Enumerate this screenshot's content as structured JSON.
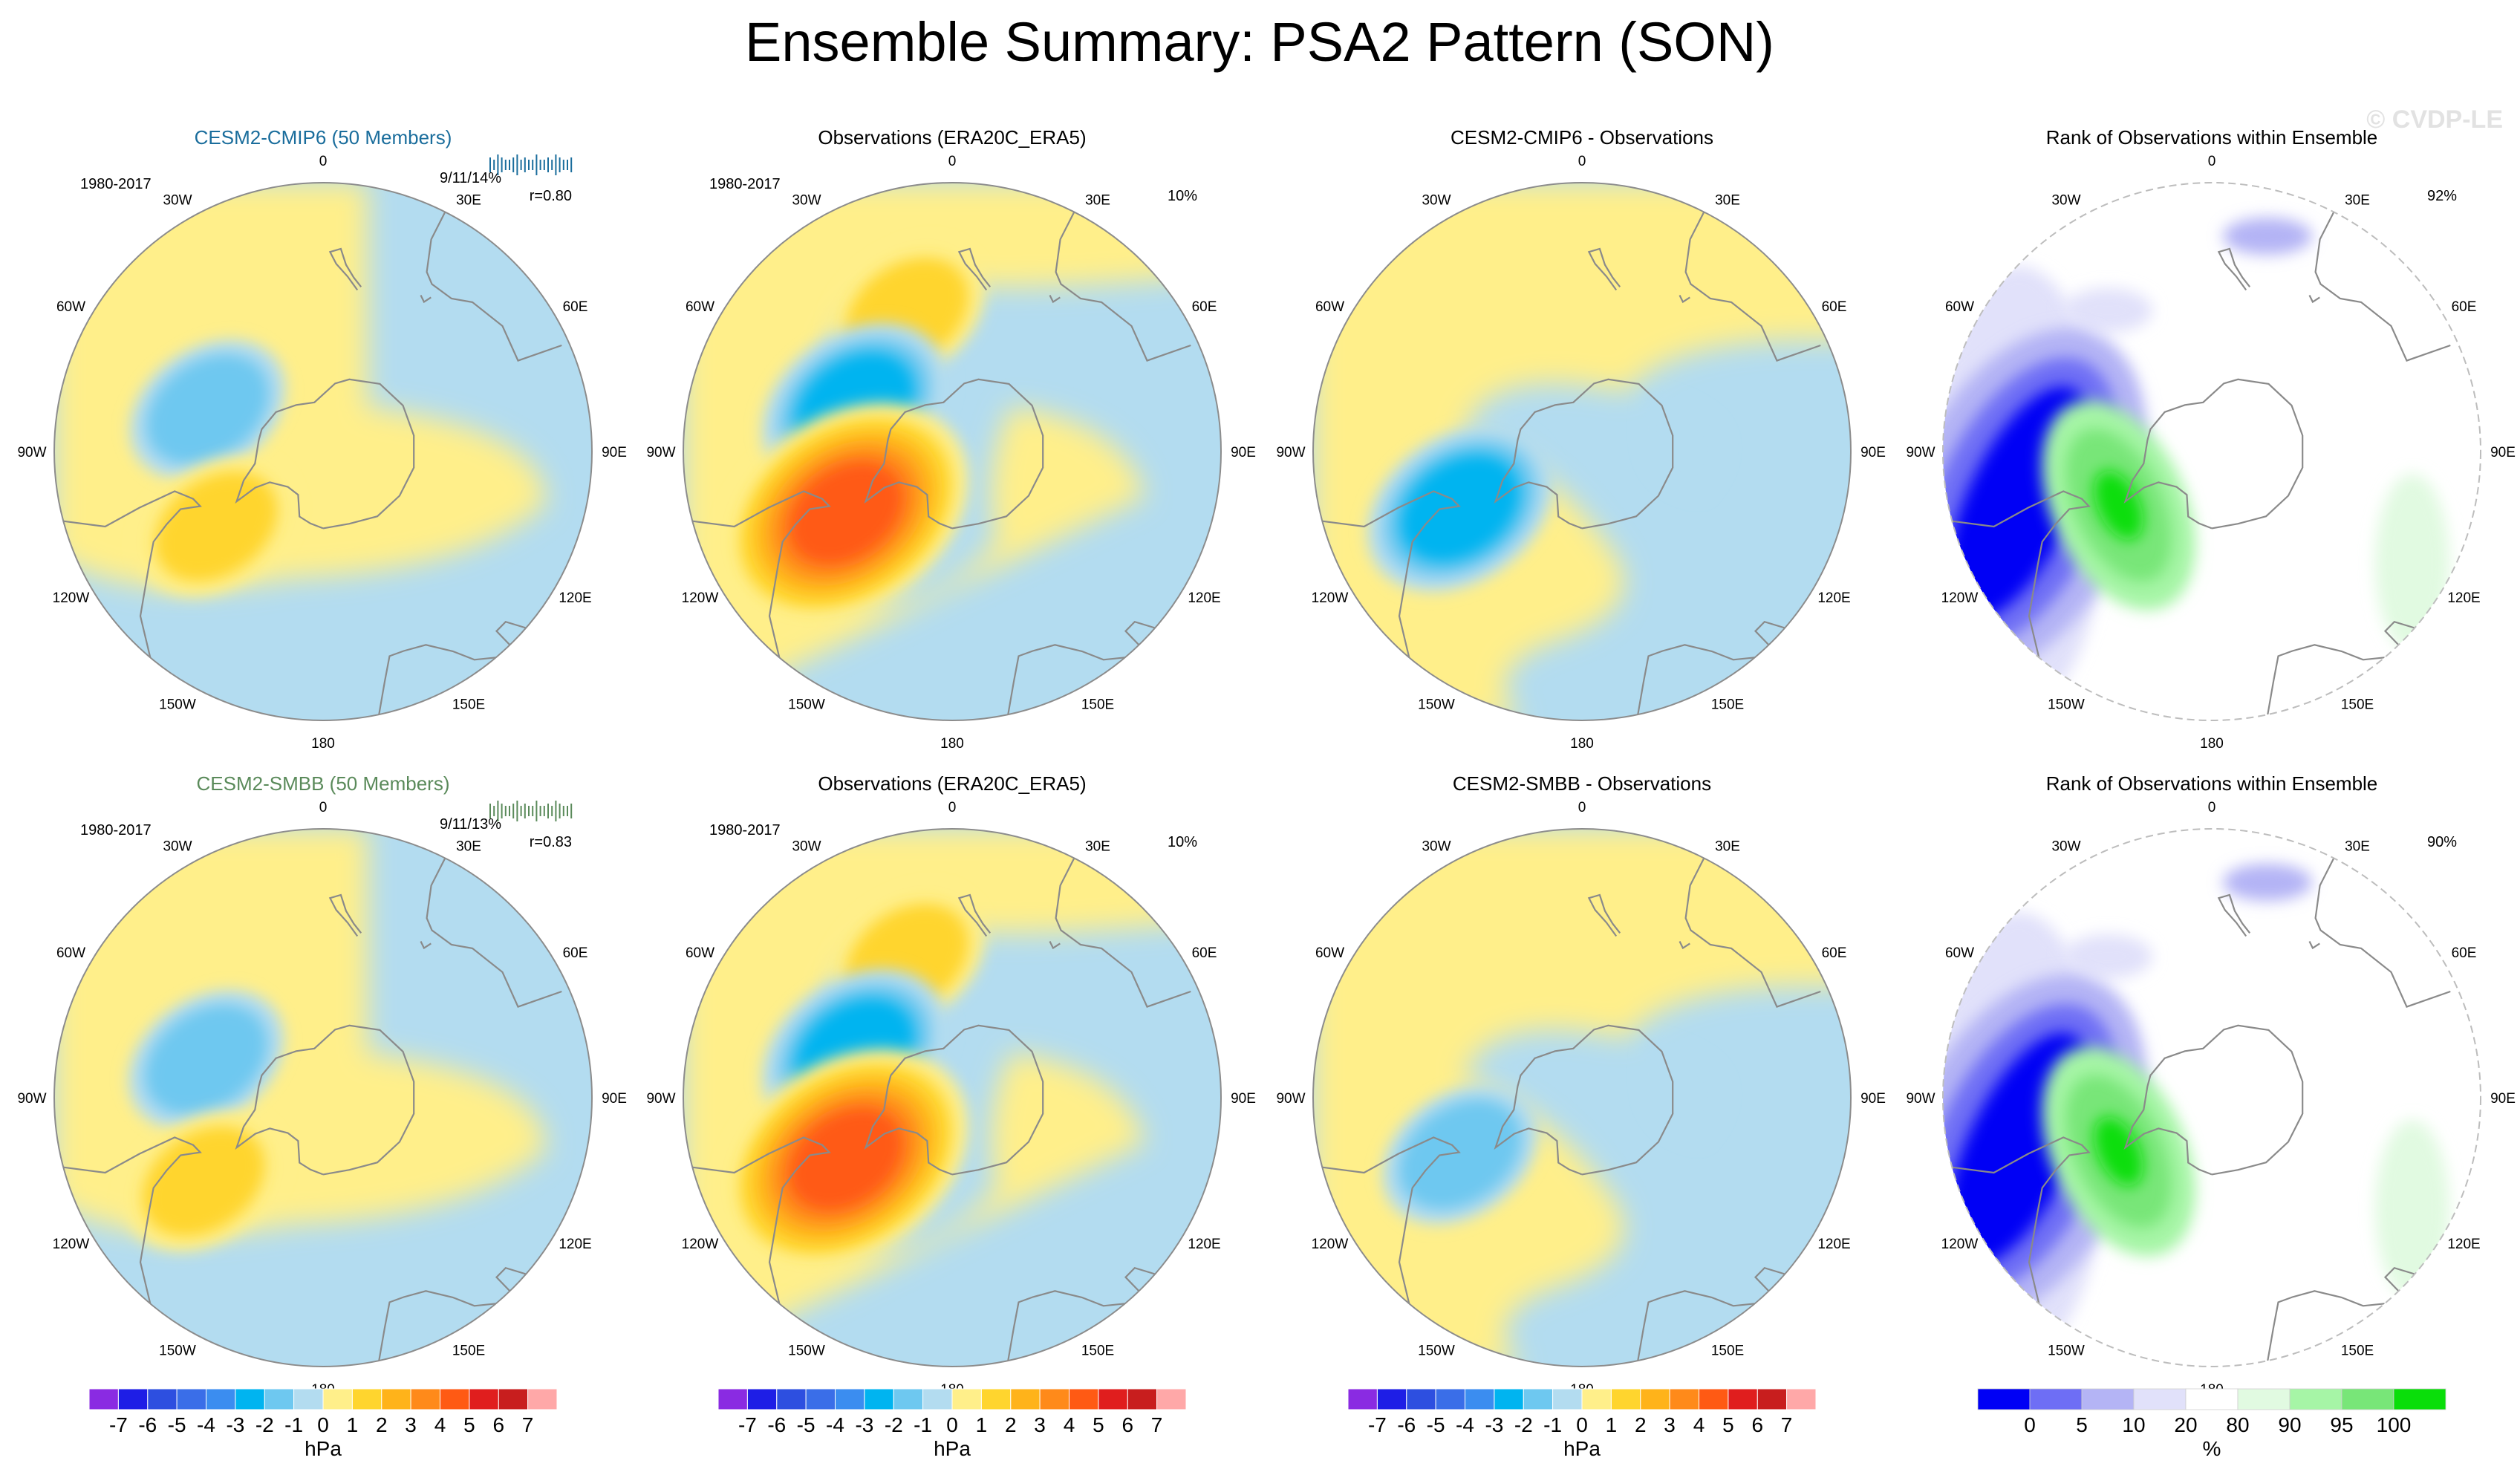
{
  "title": "Ensemble Summary: PSA2 Pattern (SON)",
  "watermark": "© CVDP-LE",
  "colors": {
    "ocean": "#b3dcf0",
    "land_outline": "#8a8a8a",
    "cmip6_title": "#1a6d9c",
    "smbb_title": "#5a8a5a"
  },
  "chart_data": [
    {
      "type": "heatmap",
      "panel": "model",
      "title": "CESM2-CMIP6 (50 Members)",
      "period": "1980-2017",
      "stats": "9/11/14%",
      "correlation": "r=0.80",
      "labels_tl": [
        "0",
        "30E",
        "60E",
        "90E",
        "120E",
        "150E",
        "180",
        "150W",
        "120W",
        "90W",
        "60W",
        "30W"
      ],
      "anomalies": [
        {
          "name": "low-south-america",
          "lon": -70,
          "lat": -58,
          "value": -2
        },
        {
          "name": "high-amundsen",
          "lon": -125,
          "lat": -56,
          "value": 2
        }
      ]
    },
    {
      "type": "heatmap",
      "panel": "obs",
      "title": "Observations (ERA20C_ERA5)",
      "period": "1980-2017",
      "stats": "10%",
      "anomalies": [
        {
          "name": "high-south-atlantic",
          "lon": -18,
          "lat": -52,
          "value": 2
        },
        {
          "name": "low-drake",
          "lon": -65,
          "lat": -62,
          "value": -3
        },
        {
          "name": "high-amundsen",
          "lon": -120,
          "lat": -58,
          "value": 5
        }
      ]
    },
    {
      "type": "heatmap",
      "panel": "diff",
      "title": "CESM2-CMIP6 - Observations",
      "anomalies": [
        {
          "name": "low-amundsen",
          "lon": -115,
          "lat": -55,
          "value": -3
        }
      ]
    },
    {
      "type": "heatmap",
      "panel": "rank",
      "title": "Rank of Observations within Ensemble",
      "stats": "92%",
      "anomalies": [
        {
          "name": "low-rank-pacific",
          "lon": -105,
          "lat": -38,
          "value": 0
        },
        {
          "name": "high-rank-amundsen",
          "lon": -120,
          "lat": -62,
          "value": 100
        }
      ]
    },
    {
      "type": "heatmap",
      "panel": "model",
      "title": "CESM2-SMBB (50 Members)",
      "period": "1980-2017",
      "stats": "9/11/13%",
      "correlation": "r=0.83",
      "anomalies": [
        {
          "name": "low-south-america",
          "lon": -72,
          "lat": -58,
          "value": -2
        },
        {
          "name": "high-amundsen",
          "lon": -125,
          "lat": -52,
          "value": 2
        }
      ]
    },
    {
      "type": "heatmap",
      "panel": "obs",
      "title": "Observations (ERA20C_ERA5)",
      "period": "1980-2017",
      "stats": "10%",
      "anomalies": [
        {
          "name": "high-south-atlantic",
          "lon": -18,
          "lat": -52,
          "value": 2
        },
        {
          "name": "low-drake",
          "lon": -65,
          "lat": -62,
          "value": -3
        },
        {
          "name": "high-amundsen",
          "lon": -120,
          "lat": -58,
          "value": 5
        }
      ]
    },
    {
      "type": "heatmap",
      "panel": "diff",
      "title": "CESM2-SMBB - Observations",
      "anomalies": [
        {
          "name": "low-amundsen",
          "lon": -115,
          "lat": -55,
          "value": -2
        }
      ]
    },
    {
      "type": "heatmap",
      "panel": "rank",
      "title": "Rank of Observations within Ensemble",
      "stats": "90%",
      "anomalies": [
        {
          "name": "low-rank-pacific",
          "lon": -105,
          "lat": -38,
          "value": 0
        },
        {
          "name": "high-rank-amundsen",
          "lon": -120,
          "lat": -62,
          "value": 100
        }
      ]
    }
  ],
  "longitude_labels": [
    "0",
    "30E",
    "60E",
    "90E",
    "120E",
    "150E",
    "180",
    "150W",
    "120W",
    "90W",
    "60W",
    "30W"
  ],
  "colorbar_hpa": {
    "unit": "hPa",
    "labels": [
      "-7",
      "-6",
      "-5",
      "-4",
      "-3",
      "-2",
      "-1",
      "0",
      "1",
      "2",
      "3",
      "4",
      "5",
      "6",
      "7"
    ],
    "colors": [
      "#8a2be2",
      "#1e1ee6",
      "#2d4fe0",
      "#3a6ee8",
      "#3b8df0",
      "#00b4f0",
      "#6ec8f0",
      "#b3dcf0",
      "#ffef8a",
      "#ffd52e",
      "#ffb31a",
      "#ff8a1a",
      "#ff5a14",
      "#e01e1e",
      "#c81e1e",
      "#ffa8a8"
    ]
  },
  "colorbar_rank": {
    "unit": "%",
    "labels": [
      "0",
      "5",
      "10",
      "20",
      "80",
      "90",
      "95",
      "100"
    ],
    "colors": [
      "#0000f5",
      "#6e6ef5",
      "#b4b4f5",
      "#e1e1fa",
      "#ffffff",
      "#e1fae1",
      "#a6f5a6",
      "#78e678",
      "#0ade0a"
    ]
  }
}
